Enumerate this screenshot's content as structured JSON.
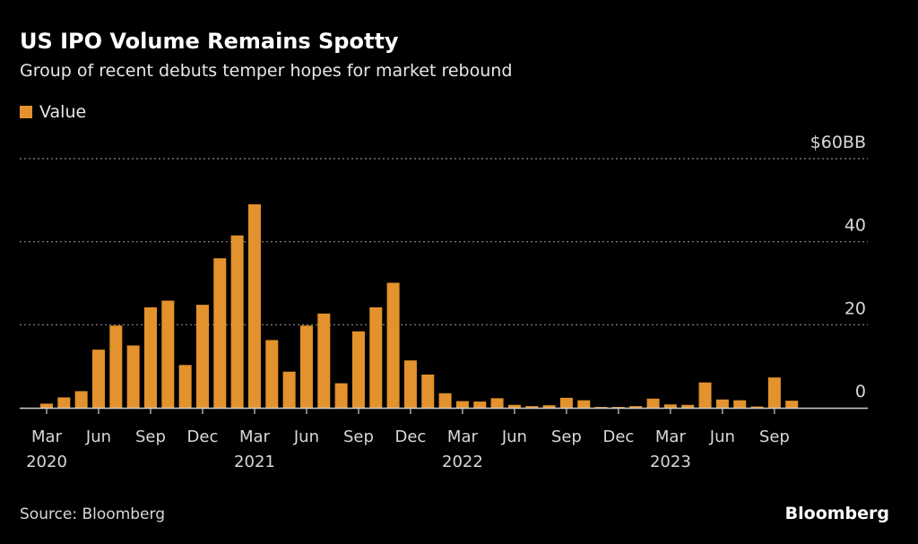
{
  "title": "US IPO Volume Remains Spotty",
  "subtitle": "Group of recent debuts temper hopes for market rebound",
  "source": "Source: Bloomberg",
  "brand": "Bloomberg",
  "colors": {
    "bar": "#e3922d",
    "background": "#000000",
    "grid": "#8a8a8a",
    "text": "#d8d8d8"
  },
  "chart_data": {
    "type": "bar",
    "legend": [
      "Value"
    ],
    "legend_position": "top-left",
    "grid": true,
    "ylim": [
      0,
      60
    ],
    "y_ticks": [
      {
        "value": 60,
        "label": "$60BB"
      },
      {
        "value": 40,
        "label": "40"
      },
      {
        "value": 20,
        "label": "20"
      },
      {
        "value": 0,
        "label": "0"
      }
    ],
    "x_ticks": [
      {
        "index": 0,
        "label": "Mar",
        "year": "2020"
      },
      {
        "index": 3,
        "label": "Jun"
      },
      {
        "index": 6,
        "label": "Sep"
      },
      {
        "index": 9,
        "label": "Dec"
      },
      {
        "index": 12,
        "label": "Mar",
        "year": "2021"
      },
      {
        "index": 15,
        "label": "Jun"
      },
      {
        "index": 18,
        "label": "Sep"
      },
      {
        "index": 21,
        "label": "Dec"
      },
      {
        "index": 24,
        "label": "Mar",
        "year": "2022"
      },
      {
        "index": 27,
        "label": "Jun"
      },
      {
        "index": 30,
        "label": "Sep"
      },
      {
        "index": 33,
        "label": "Dec"
      },
      {
        "index": 36,
        "label": "Mar",
        "year": "2023"
      },
      {
        "index": 39,
        "label": "Jun"
      },
      {
        "index": 42,
        "label": "Sep"
      }
    ],
    "categories": [
      "2020-03",
      "2020-04",
      "2020-05",
      "2020-06",
      "2020-07",
      "2020-08",
      "2020-09",
      "2020-10",
      "2020-11",
      "2020-12",
      "2021-01",
      "2021-02",
      "2021-03",
      "2021-04",
      "2021-05",
      "2021-06",
      "2021-07",
      "2021-08",
      "2021-09",
      "2021-10",
      "2021-11",
      "2021-12",
      "2022-01",
      "2022-02",
      "2022-03",
      "2022-04",
      "2022-05",
      "2022-06",
      "2022-07",
      "2022-08",
      "2022-09",
      "2022-10",
      "2022-11",
      "2022-12",
      "2023-01",
      "2023-02",
      "2023-03",
      "2023-04",
      "2023-05",
      "2023-06",
      "2023-07",
      "2023-08",
      "2023-09",
      "2023-10"
    ],
    "series": [
      {
        "name": "Value",
        "values": [
          1,
          2.5,
          4,
          14,
          19.8,
          15,
          24.2,
          25.8,
          10.3,
          24.8,
          36,
          41.5,
          49,
          16.3,
          8.7,
          19.8,
          22.7,
          5.9,
          18.4,
          24.2,
          30.1,
          11.4,
          8,
          3.5,
          1.6,
          1.5,
          2.3,
          0.7,
          0.4,
          0.6,
          2.4,
          1.8,
          0.2,
          0.2,
          0.4,
          2.2,
          0.8,
          0.7,
          6.1,
          2,
          1.8,
          0.3,
          7.3,
          1.7
        ]
      }
    ]
  }
}
